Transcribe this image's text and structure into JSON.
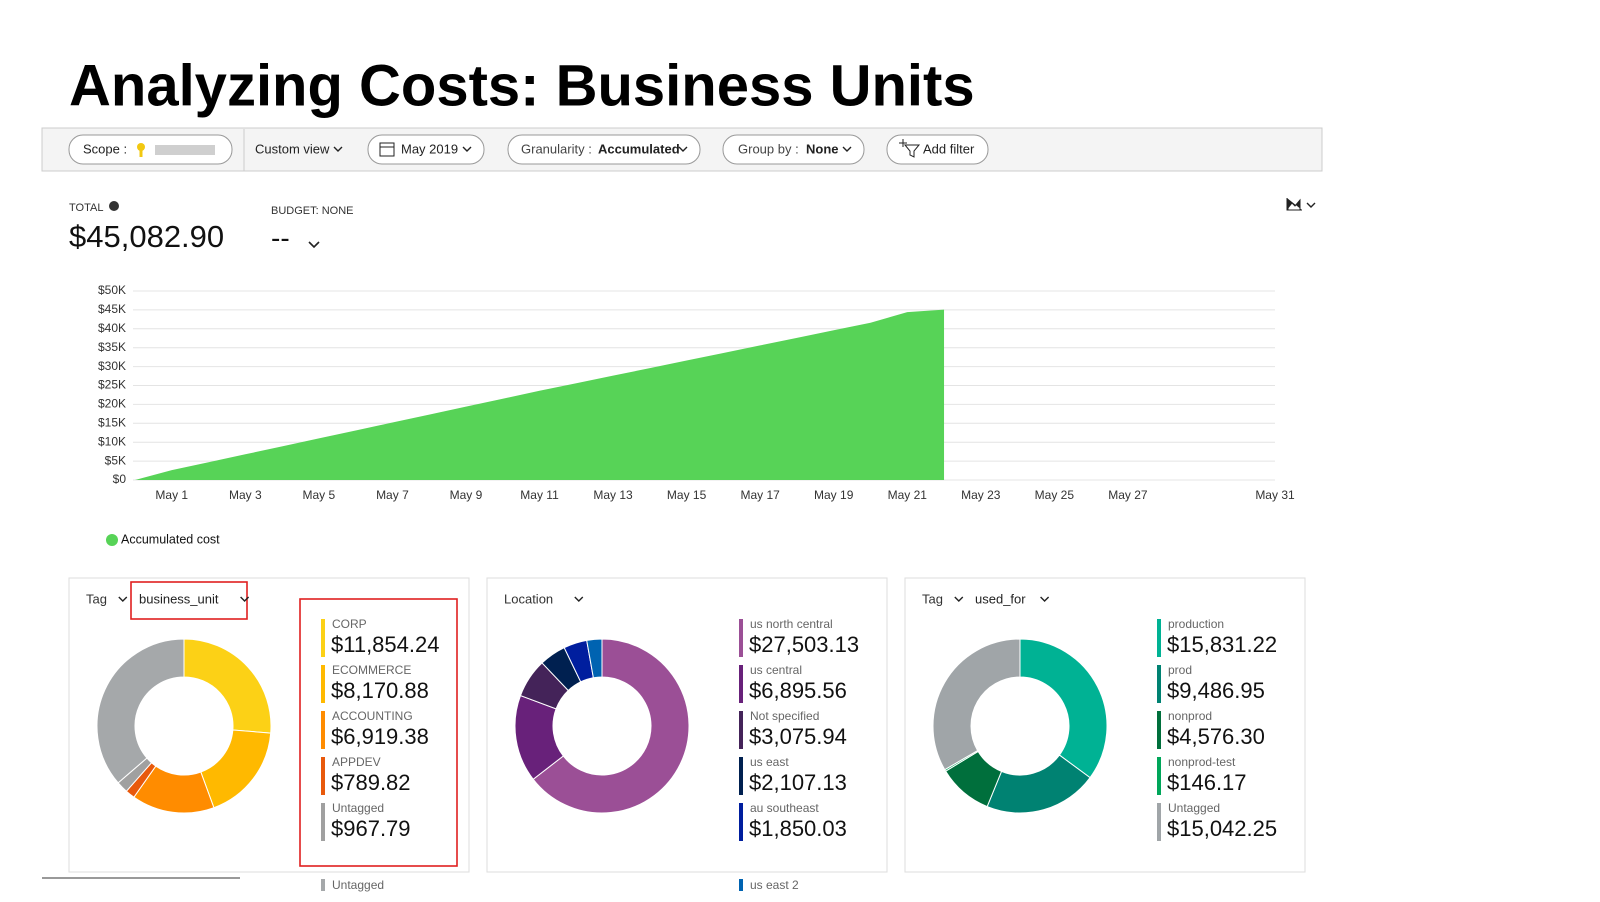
{
  "title": "Analyzing Costs: Business Units",
  "toolbar": {
    "scope_label": "Scope :",
    "custom_view": "Custom view",
    "date": "May 2019",
    "granularity_label": "Granularity :",
    "granularity": "Accumulated",
    "group_by_label": "Group by :",
    "group_by": "None",
    "add_filter": "Add filter"
  },
  "summary": {
    "total_label": "TOTAL",
    "total": "$45,082.90",
    "budget_label": "BUDGET: NONE",
    "budget": "--"
  },
  "chart_data": [
    {
      "type": "area",
      "grid": true,
      "x": [
        0,
        1,
        2,
        3,
        4,
        5,
        6,
        7,
        8,
        9,
        10,
        11,
        12,
        13,
        14,
        15,
        16,
        17,
        18,
        19,
        20,
        21,
        22
      ],
      "series": [
        {
          "name": "Accumulated cost",
          "color": "#57d357",
          "values": [
            0,
            2600,
            4700,
            6800,
            8900,
            11000,
            13100,
            15200,
            17300,
            19400,
            21500,
            23600,
            25600,
            27600,
            29600,
            31600,
            33600,
            35600,
            37600,
            39600,
            41600,
            44400,
            45082.9
          ]
        }
      ],
      "xlim": [
        0,
        31
      ],
      "xticks": [
        {
          "value": 1,
          "label": "May 1"
        },
        {
          "value": 3,
          "label": "May 3"
        },
        {
          "value": 5,
          "label": "May 5"
        },
        {
          "value": 7,
          "label": "May 7"
        },
        {
          "value": 9,
          "label": "May 9"
        },
        {
          "value": 11,
          "label": "May 11"
        },
        {
          "value": 13,
          "label": "May 13"
        },
        {
          "value": 15,
          "label": "May 15"
        },
        {
          "value": 17,
          "label": "May 17"
        },
        {
          "value": 19,
          "label": "May 19"
        },
        {
          "value": 21,
          "label": "May 21"
        },
        {
          "value": 23,
          "label": "May 23"
        },
        {
          "value": 25,
          "label": "May 25"
        },
        {
          "value": 27,
          "label": "May 27"
        },
        {
          "value": 31,
          "label": "May 31"
        }
      ],
      "ylim": [
        0,
        50000
      ],
      "yticks": [
        {
          "value": 0,
          "label": "$0"
        },
        {
          "value": 5000,
          "label": "$5K"
        },
        {
          "value": 10000,
          "label": "$10K"
        },
        {
          "value": 15000,
          "label": "$15K"
        },
        {
          "value": 20000,
          "label": "$20K"
        },
        {
          "value": 25000,
          "label": "$25K"
        },
        {
          "value": 30000,
          "label": "$30K"
        },
        {
          "value": 35000,
          "label": "$35K"
        },
        {
          "value": 40000,
          "label": "$40K"
        },
        {
          "value": 45000,
          "label": "$45K"
        },
        {
          "value": 50000,
          "label": "$50K"
        }
      ]
    },
    {
      "type": "donut",
      "group_label": "Tag",
      "group_value": "business_unit",
      "categories": [
        "CORP",
        "ECOMMERCE",
        "ACCOUNTING",
        "APPDEV",
        "Untagged",
        "Untagged"
      ],
      "values": [
        11854.24,
        8170.88,
        6919.38,
        789.82,
        967.79,
        16380.79
      ],
      "value_labels": [
        "$11,854.24",
        "$8,170.88",
        "$6,919.38",
        "$789.82",
        "$967.79",
        null
      ],
      "colors": [
        "#fcd116",
        "#ffb900",
        "#ff8c00",
        "#e8590c",
        "#a0a0a0",
        "#a5a8aa"
      ]
    },
    {
      "type": "donut",
      "group_label": "Location",
      "categories": [
        "us north central",
        "us central",
        "Not specified",
        "us east",
        "au southeast",
        "us east 2"
      ],
      "values": [
        27503.13,
        6895.56,
        3075.94,
        2107.13,
        1850.03,
        1200
      ],
      "value_labels": [
        "$27,503.13",
        "$6,895.56",
        "$3,075.94",
        "$2,107.13",
        "$1,850.03",
        null
      ],
      "colors": [
        "#9b4f96",
        "#68217a",
        "#442359",
        "#002050",
        "#001e9e",
        "#0063b1"
      ]
    },
    {
      "type": "donut",
      "group_label": "Tag",
      "group_value": "used_for",
      "categories": [
        "production",
        "prod",
        "nonprod",
        "nonprod-test",
        "Untagged"
      ],
      "values": [
        15831.22,
        9486.95,
        4576.3,
        146.17,
        15042.25
      ],
      "value_labels": [
        "$15,831.22",
        "$9,486.95",
        "$4,576.30",
        "$146.17",
        "$15,042.25"
      ],
      "colors": [
        "#00b294",
        "#008272",
        "#006f3c",
        "#00a65a",
        "#a0a5a8"
      ]
    }
  ]
}
